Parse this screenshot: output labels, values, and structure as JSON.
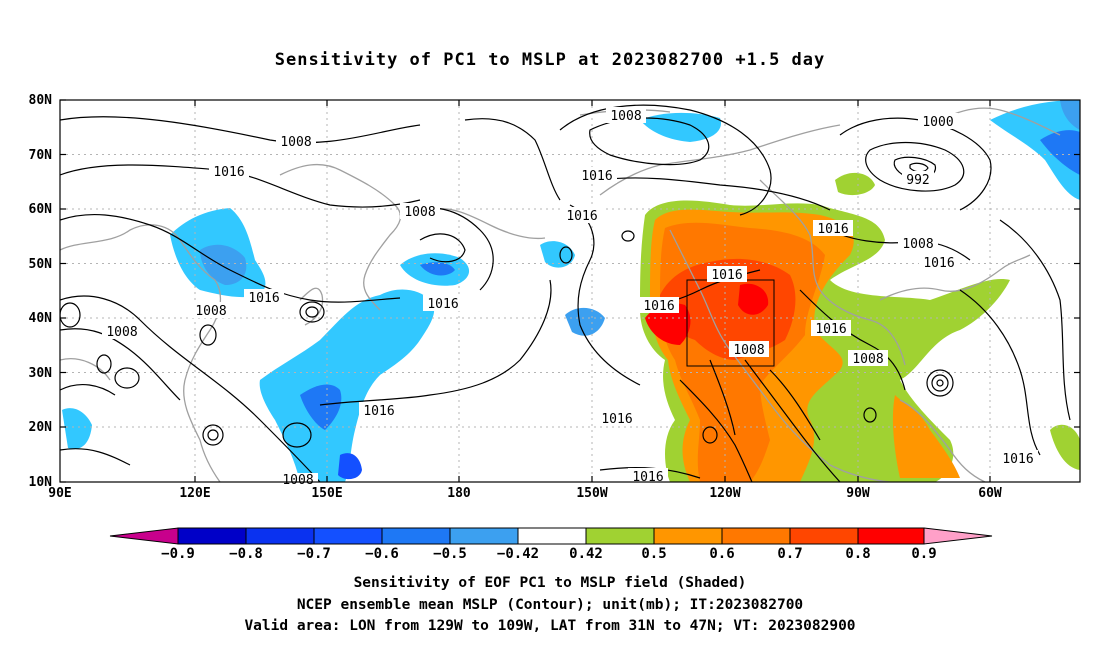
{
  "title": "Sensitivity of PC1 to MSLP at 2023082700 +1.5 day",
  "axes": {
    "lat_labels": [
      "80N",
      "70N",
      "60N",
      "50N",
      "40N",
      "30N",
      "20N",
      "10N"
    ],
    "lon_labels": [
      "90E",
      "120E",
      "150E",
      "180",
      "150W",
      "120W",
      "90W",
      "60W"
    ]
  },
  "contour_labels": [
    {
      "text": "1008",
      "id": "c1"
    },
    {
      "text": "1016",
      "id": "c2"
    },
    {
      "text": "1008",
      "id": "c3"
    },
    {
      "text": "1016",
      "id": "c4"
    },
    {
      "text": "1008",
      "id": "c5"
    },
    {
      "text": "1016",
      "id": "c6"
    },
    {
      "text": "1008",
      "id": "c7"
    },
    {
      "text": "1016",
      "id": "c8"
    },
    {
      "text": "1016",
      "id": "c9"
    },
    {
      "text": "1016",
      "id": "c10"
    },
    {
      "text": "1008",
      "id": "c11"
    },
    {
      "text": "1016",
      "id": "c12"
    },
    {
      "text": "1000",
      "id": "c13"
    },
    {
      "text": "992",
      "id": "c14"
    },
    {
      "text": "1016",
      "id": "c15"
    },
    {
      "text": "1008",
      "id": "c16"
    },
    {
      "text": "1016",
      "id": "c17"
    },
    {
      "text": "1016",
      "id": "c18"
    },
    {
      "text": "1016",
      "id": "c19"
    },
    {
      "text": "1016",
      "id": "c20"
    },
    {
      "text": "1008",
      "id": "c21"
    },
    {
      "text": "1016",
      "id": "c22"
    },
    {
      "text": "1008",
      "id": "c23"
    },
    {
      "text": "1016",
      "id": "c24"
    },
    {
      "text": "1008",
      "id": "c25"
    },
    {
      "text": "1016",
      "id": "c26"
    }
  ],
  "colorbar": {
    "labels": [
      "-0.9",
      "-0.8",
      "-0.7",
      "-0.6",
      "-0.5",
      "-0.42",
      "0.42",
      "0.5",
      "0.6",
      "0.7",
      "0.8",
      "0.9"
    ],
    "colors": [
      "#c8008c",
      "#0000c8",
      "#0a32f0",
      "#1450ff",
      "#1e78f5",
      "#3ca0f0",
      "#32c8ff",
      "#ffffff",
      "#a0d232",
      "#ff9600",
      "#ff7800",
      "#ff4600",
      "#ff0000",
      "#ffa0c8"
    ]
  },
  "caption": {
    "line1": "Sensitivity of EOF PC1 to MSLP field (Shaded)",
    "line2": "NCEP ensemble mean MSLP (Contour); unit(mb); IT:2023082700",
    "line3": "Valid area: LON from 129W to 109W, LAT from 31N to 47N; VT: 2023082900"
  },
  "valid_area_box": {
    "lon_min": -129,
    "lon_max": -109,
    "lat_min": 31,
    "lat_max": 47
  }
}
